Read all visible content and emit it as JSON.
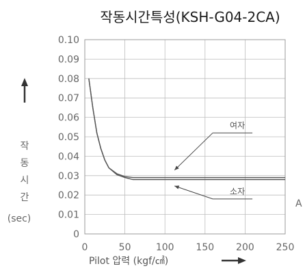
{
  "chart_data": {
    "type": "line",
    "title": "작동시간특성(KSH-G04-2CA)",
    "xlabel": "Pilot 압력 (kgf/㎠)",
    "ylabel_chars": [
      "작",
      "동",
      "시",
      "간"
    ],
    "ylabel_unit": "(sec)",
    "xlim": [
      0,
      250
    ],
    "ylim": [
      0,
      0.1
    ],
    "x_ticks": [
      "0",
      "50",
      "100",
      "150",
      "200",
      "250"
    ],
    "y_ticks": [
      "0",
      "0.01",
      "0.02",
      "0.03",
      "0.04",
      "0.05",
      "0.06",
      "0.07",
      "0.08",
      "0.09",
      "0.10"
    ],
    "grid": true,
    "series": [
      {
        "name": "여자",
        "x": [
          5,
          10,
          15,
          20,
          25,
          30,
          40,
          50,
          60,
          80,
          100,
          150,
          200,
          250
        ],
        "y": [
          0.08,
          0.065,
          0.052,
          0.044,
          0.038,
          0.034,
          0.031,
          0.0295,
          0.029,
          0.029,
          0.029,
          0.029,
          0.029,
          0.029
        ]
      },
      {
        "name": "소자",
        "x": [
          5,
          10,
          15,
          20,
          25,
          30,
          40,
          50,
          60,
          80,
          100,
          150,
          200,
          250
        ],
        "y": [
          0.08,
          0.065,
          0.052,
          0.044,
          0.038,
          0.034,
          0.0305,
          0.029,
          0.028,
          0.028,
          0.028,
          0.028,
          0.028,
          0.028
        ]
      }
    ],
    "annotations": [
      {
        "text": "여자",
        "x": 175,
        "y": 0.052,
        "arrow_to_x": 100,
        "arrow_to_y": 0.03
      },
      {
        "text": "소자",
        "x": 175,
        "y": 0.018,
        "arrow_to_x": 100,
        "arrow_to_y": 0.0275
      }
    ],
    "edge_text": "A"
  }
}
